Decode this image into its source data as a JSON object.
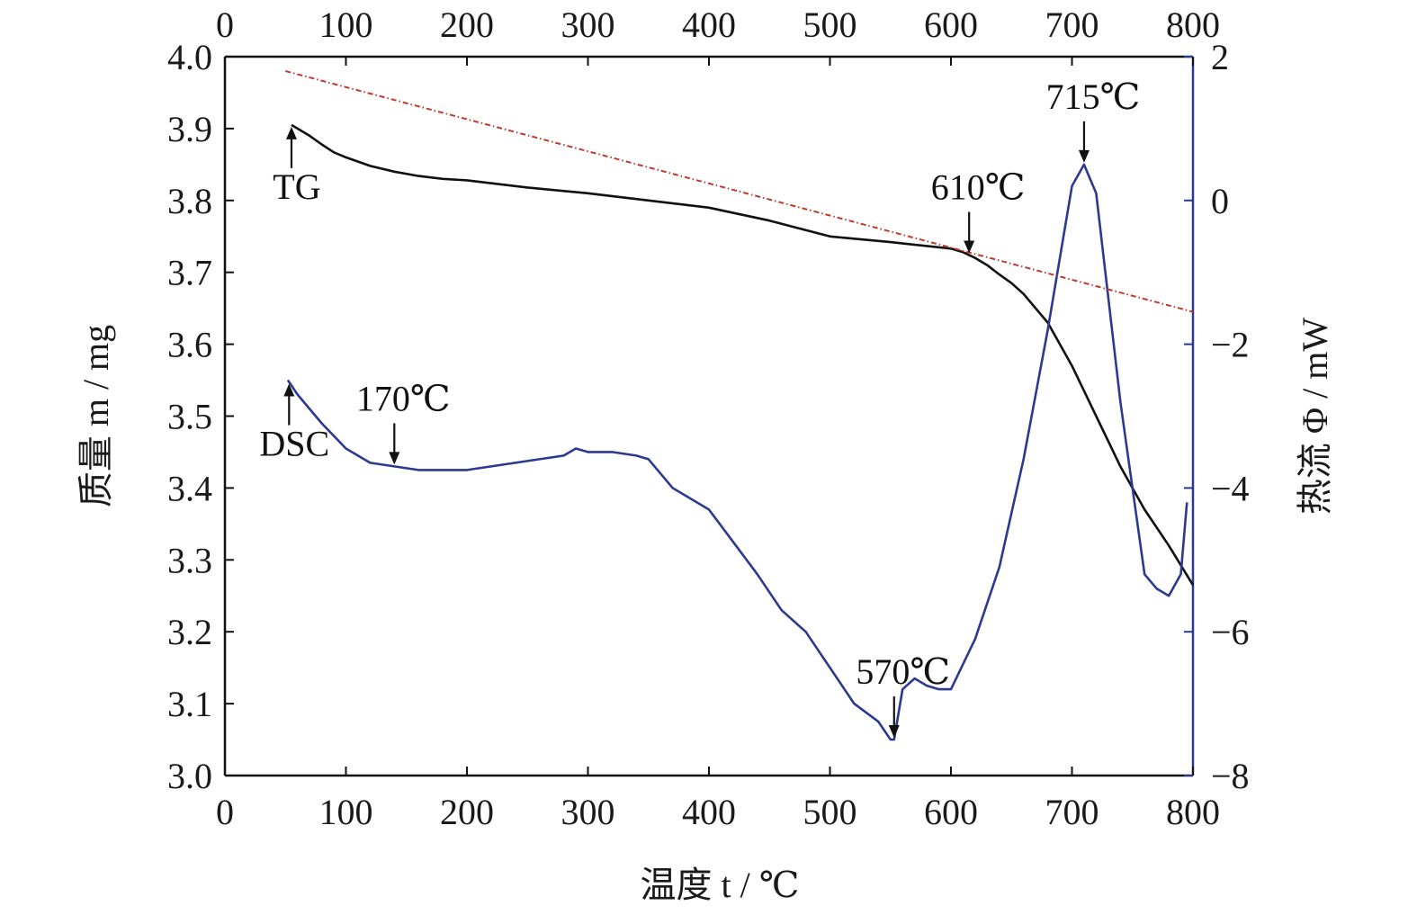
{
  "chart_data": {
    "type": "line",
    "xlabel": "温度 t / ℃",
    "ylabel_left": "质量 m / mg",
    "ylabel_right": "热流 Φ / mW",
    "xlim": [
      0,
      800
    ],
    "ylim_left": [
      3.0,
      4.0
    ],
    "ylim_right": [
      -8,
      2
    ],
    "x_ticks": [
      "0",
      "100",
      "200",
      "300",
      "400",
      "500",
      "600",
      "700",
      "800"
    ],
    "y_left_ticks": [
      "3.0",
      "3.1",
      "3.2",
      "3.3",
      "3.4",
      "3.5",
      "3.6",
      "3.7",
      "3.8",
      "3.9",
      "4.0"
    ],
    "y_right_ticks": [
      "−8",
      "−6",
      "−4",
      "−2",
      "0",
      "2"
    ],
    "grid": false,
    "colors": {
      "tg": "#111111",
      "dsc": "#2b3990",
      "baseline": "#c0392b",
      "frame": "#111111",
      "right_axis": "#2b3990"
    },
    "series": [
      {
        "label": "TG",
        "axis": "left",
        "color": "#111111",
        "x": [
          55,
          60,
          70,
          80,
          90,
          100,
          120,
          140,
          160,
          180,
          200,
          250,
          300,
          350,
          400,
          450,
          500,
          550,
          600,
          610,
          620,
          630,
          640,
          650,
          660,
          680,
          700,
          720,
          740,
          760,
          780,
          800
        ],
        "y": [
          3.905,
          3.9,
          3.89,
          3.878,
          3.867,
          3.86,
          3.848,
          3.84,
          3.834,
          3.83,
          3.828,
          3.818,
          3.81,
          3.8,
          3.79,
          3.772,
          3.75,
          3.742,
          3.733,
          3.728,
          3.72,
          3.71,
          3.697,
          3.685,
          3.67,
          3.63,
          3.57,
          3.5,
          3.43,
          3.37,
          3.32,
          3.265
        ]
      },
      {
        "label": "DSC",
        "axis": "right",
        "color": "#2b3990",
        "x": [
          52,
          60,
          80,
          100,
          120,
          140,
          160,
          180,
          200,
          220,
          240,
          260,
          280,
          290,
          300,
          320,
          340,
          350,
          370,
          400,
          420,
          440,
          460,
          480,
          500,
          520,
          540,
          550,
          553,
          556,
          560,
          570,
          580,
          590,
          600,
          620,
          640,
          660,
          680,
          700,
          710,
          720,
          740,
          760,
          770,
          780,
          790,
          795
        ],
        "y": [
          -2.5,
          -2.7,
          -3.1,
          -3.45,
          -3.65,
          -3.7,
          -3.75,
          -3.75,
          -3.75,
          -3.7,
          -3.65,
          -3.6,
          -3.55,
          -3.45,
          -3.5,
          -3.5,
          -3.55,
          -3.6,
          -4.0,
          -4.3,
          -4.75,
          -5.2,
          -5.7,
          -6.0,
          -6.5,
          -7.0,
          -7.25,
          -7.5,
          -7.5,
          -7.2,
          -6.8,
          -6.65,
          -6.75,
          -6.8,
          -6.8,
          -6.1,
          -5.1,
          -3.6,
          -1.8,
          0.2,
          0.5,
          0.1,
          -2.8,
          -5.2,
          -5.4,
          -5.5,
          -5.2,
          -4.2
        ]
      },
      {
        "label": "",
        "axis": "left",
        "style": "dash-dot",
        "color": "#c0392b",
        "x": [
          50,
          800
        ],
        "y": [
          3.98,
          3.645
        ]
      }
    ],
    "annotations": [
      {
        "text": "TG",
        "arrow_x": 55,
        "series": "TG",
        "direction": "up"
      },
      {
        "text": "DSC",
        "arrow_x": 53,
        "series": "DSC",
        "direction": "up"
      },
      {
        "text": "170℃",
        "arrow_x": 140,
        "series": "DSC",
        "direction": "down"
      },
      {
        "text": "570℃",
        "arrow_x": 553,
        "series": "DSC",
        "direction": "down"
      },
      {
        "text": "610℃",
        "arrow_x": 615,
        "series": "TG",
        "direction": "down"
      },
      {
        "text": "715℃",
        "arrow_x": 710,
        "series": "DSC",
        "direction": "down"
      }
    ]
  }
}
